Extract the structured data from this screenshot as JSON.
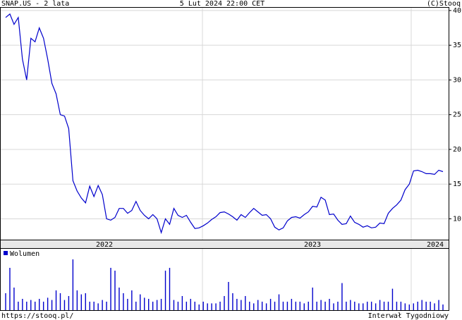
{
  "header": {
    "title": "SNAP.US - 2 lata",
    "date": "5 Lut 2024 22:00 CET",
    "credit": "(C)Stooq"
  },
  "footer": {
    "url": "https://stooq.pl/",
    "interval": "Interwał Tygodniowy"
  },
  "chart_data": [
    {
      "type": "line",
      "x_labels": [
        "2022",
        "2023",
        "2024"
      ],
      "series": [
        {
          "color": "#0000cc",
          "values": [
            39,
            39.5,
            38,
            39,
            33,
            30,
            36,
            35.5,
            37.5,
            36,
            33,
            29.5,
            28,
            25,
            24.8,
            23,
            15.5,
            14,
            13,
            12.3,
            14.7,
            13.2,
            14.8,
            13.5,
            10,
            9.8,
            10.2,
            11.5,
            11.5,
            10.8,
            11.2,
            12.5,
            11.2,
            10.5,
            10,
            10.6,
            10,
            8,
            10,
            9.2,
            11.5,
            10.5,
            10.2,
            10.5,
            9.5,
            8.6,
            8.7,
            9,
            9.4,
            9.9,
            10.3,
            10.9,
            11,
            10.7,
            10.3,
            9.8,
            10.6,
            10.2,
            10.9,
            11.5,
            11,
            10.5,
            10.6,
            10,
            8.8,
            8.4,
            8.7,
            9.7,
            10.2,
            10.3,
            10.1,
            10.6,
            11,
            11.8,
            11.7,
            13.1,
            12.7,
            10.6,
            10.7,
            9.8,
            9.2,
            9.3,
            10.4,
            9.5,
            9.2,
            8.8,
            9,
            8.7,
            8.8,
            9.4,
            9.3,
            10.8,
            11.5,
            12,
            12.7,
            14.2,
            15,
            16.9,
            17,
            16.8,
            16.5,
            16.5,
            16.4,
            17,
            16.8
          ]
        }
      ],
      "ylim": [
        7,
        40.5
      ],
      "yticks": [
        10,
        15,
        20,
        25,
        30,
        35,
        40
      ],
      "grid": true
    },
    {
      "type": "bar",
      "series": [
        {
          "name": "Wolumen",
          "color": "#0000cc",
          "values": [
            30,
            75,
            40,
            15,
            20,
            15,
            18,
            15,
            20,
            15,
            22,
            18,
            35,
            30,
            18,
            25,
            90,
            35,
            28,
            30,
            15,
            15,
            12,
            18,
            15,
            75,
            70,
            40,
            30,
            20,
            35,
            15,
            28,
            22,
            20,
            15,
            18,
            20,
            70,
            75,
            18,
            15,
            25,
            15,
            20,
            15,
            10,
            15,
            12,
            12,
            12,
            15,
            25,
            50,
            30,
            20,
            18,
            25,
            15,
            12,
            18,
            15,
            12,
            20,
            15,
            28,
            15,
            15,
            20,
            15,
            15,
            12,
            15,
            40,
            15,
            18,
            15,
            20,
            12,
            15,
            48,
            15,
            18,
            15,
            12,
            12,
            15,
            15,
            12,
            18,
            15,
            15,
            38,
            15,
            15,
            12,
            10,
            12,
            15,
            18,
            15,
            15,
            12,
            18,
            10
          ]
        }
      ],
      "ylim": [
        0,
        100
      ]
    }
  ]
}
